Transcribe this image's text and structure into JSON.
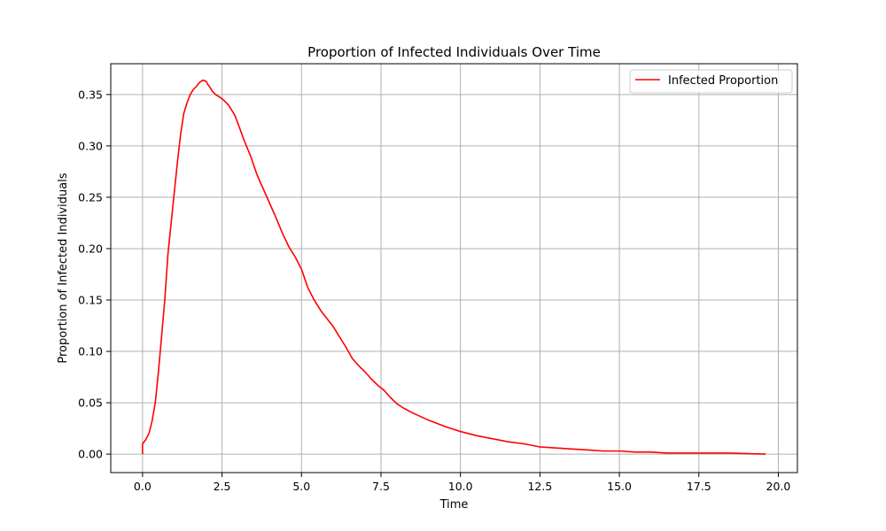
{
  "chart_data": {
    "type": "line",
    "title": "Proportion of Infected Individuals Over Time",
    "xlabel": "Time",
    "ylabel": "Proportion of Infected Individuals",
    "xlim": [
      -1.0,
      20.6
    ],
    "ylim": [
      -0.018,
      0.38
    ],
    "grid": true,
    "legend_position": "top-right",
    "x_ticks": [
      0.0,
      2.5,
      5.0,
      7.5,
      10.0,
      12.5,
      15.0,
      17.5,
      20.0
    ],
    "x_tick_labels": [
      "0.0",
      "2.5",
      "5.0",
      "7.5",
      "10.0",
      "12.5",
      "15.0",
      "17.5",
      "20.0"
    ],
    "y_ticks": [
      0.0,
      0.05,
      0.1,
      0.15,
      0.2,
      0.25,
      0.3,
      0.35
    ],
    "y_tick_labels": [
      "0.00",
      "0.05",
      "0.10",
      "0.15",
      "0.20",
      "0.25",
      "0.30",
      "0.35"
    ],
    "series": [
      {
        "name": "Infected Proportion",
        "color": "#ff0000",
        "x": [
          0.0,
          0.0,
          0.1,
          0.2,
          0.3,
          0.4,
          0.5,
          0.6,
          0.7,
          0.8,
          0.9,
          1.0,
          1.1,
          1.2,
          1.3,
          1.4,
          1.5,
          1.6,
          1.7,
          1.8,
          1.9,
          2.0,
          2.05,
          2.1,
          2.2,
          2.3,
          2.4,
          2.5,
          2.7,
          2.9,
          3.0,
          3.2,
          3.4,
          3.6,
          3.8,
          4.0,
          4.2,
          4.4,
          4.6,
          4.8,
          5.0,
          5.2,
          5.4,
          5.6,
          5.8,
          6.0,
          6.2,
          6.4,
          6.6,
          6.8,
          7.0,
          7.2,
          7.4,
          7.6,
          7.8,
          8.0,
          8.2,
          8.5,
          9.0,
          9.5,
          10.0,
          10.5,
          11.0,
          11.5,
          12.0,
          12.5,
          13.0,
          13.5,
          14.0,
          14.5,
          15.0,
          15.5,
          16.0,
          16.5,
          17.0,
          17.5,
          18.0,
          18.5,
          19.0,
          19.6
        ],
        "y": [
          0.0,
          0.01,
          0.014,
          0.02,
          0.032,
          0.05,
          0.08,
          0.115,
          0.15,
          0.195,
          0.225,
          0.255,
          0.285,
          0.312,
          0.332,
          0.342,
          0.35,
          0.355,
          0.358,
          0.362,
          0.364,
          0.363,
          0.36,
          0.358,
          0.353,
          0.35,
          0.348,
          0.346,
          0.34,
          0.33,
          0.322,
          0.305,
          0.29,
          0.272,
          0.258,
          0.244,
          0.23,
          0.215,
          0.202,
          0.192,
          0.18,
          0.162,
          0.15,
          0.14,
          0.132,
          0.124,
          0.114,
          0.104,
          0.093,
          0.086,
          0.08,
          0.073,
          0.067,
          0.062,
          0.055,
          0.049,
          0.045,
          0.04,
          0.033,
          0.027,
          0.022,
          0.018,
          0.015,
          0.012,
          0.01,
          0.007,
          0.006,
          0.005,
          0.004,
          0.003,
          0.003,
          0.002,
          0.002,
          0.001,
          0.001,
          0.001,
          0.001,
          0.001,
          0.0005,
          0.0
        ]
      }
    ]
  }
}
